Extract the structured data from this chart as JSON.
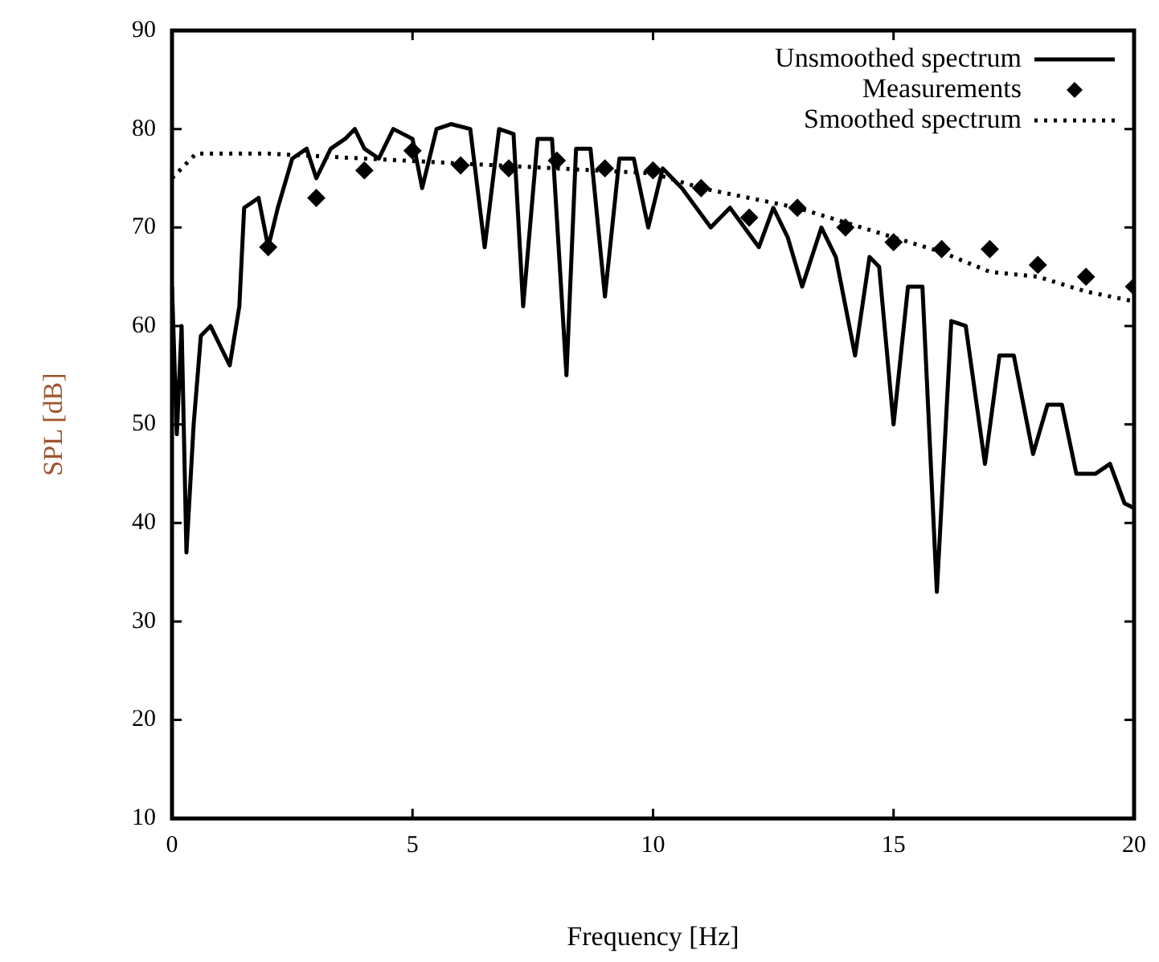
{
  "chart_data": {
    "type": "line",
    "xlabel": "Frequency [Hz]",
    "ylabel": "SPL [dB]",
    "xlim": [
      0,
      20
    ],
    "xticks": [
      0,
      5,
      10,
      15,
      20
    ],
    "ylim": [
      10,
      90
    ],
    "yticks": [
      10,
      20,
      30,
      40,
      50,
      60,
      70,
      80,
      90
    ],
    "grid": false,
    "legend": "top right",
    "series": [
      {
        "name": "Unsmoothed spectrum",
        "type": "line",
        "color": "#000000",
        "line_style": "solid",
        "marker": "none",
        "x": [
          0,
          0.1,
          0.2,
          0.3,
          0.45,
          0.6,
          0.8,
          1.0,
          1.2,
          1.4,
          1.5,
          1.8,
          2.0,
          2.2,
          2.5,
          2.8,
          3.0,
          3.3,
          3.6,
          3.8,
          4.0,
          4.3,
          4.6,
          5.0,
          5.2,
          5.5,
          5.8,
          6.2,
          6.5,
          6.8,
          7.1,
          7.3,
          7.6,
          7.9,
          8.2,
          8.4,
          8.7,
          9.0,
          9.3,
          9.6,
          9.9,
          10.2,
          10.6,
          10.9,
          11.2,
          11.6,
          11.9,
          12.2,
          12.5,
          12.8,
          13.1,
          13.5,
          13.8,
          14.2,
          14.5,
          14.7,
          15.0,
          15.3,
          15.6,
          15.9,
          16.2,
          16.5,
          16.9,
          17.2,
          17.5,
          17.9,
          18.2,
          18.5,
          18.8,
          19.2,
          19.5,
          19.8,
          20
        ],
        "values": [
          64,
          49,
          60,
          37,
          50,
          59,
          60,
          58,
          56,
          62,
          72,
          73,
          68,
          72,
          77,
          78,
          75,
          78,
          79,
          80,
          78,
          77,
          80,
          79,
          74,
          80,
          80.5,
          80,
          68,
          80,
          79.5,
          62,
          79,
          79,
          55,
          78,
          78,
          63,
          77,
          77,
          70,
          76,
          74,
          72,
          70,
          72,
          70,
          68,
          72,
          69,
          64,
          70,
          67,
          57,
          67,
          66,
          50,
          64,
          64,
          33,
          60.5,
          60,
          46,
          57,
          57,
          47,
          52,
          52,
          45,
          45,
          46,
          42,
          41.5
        ]
      },
      {
        "name": "Measurements",
        "type": "scatter",
        "color": "#000000",
        "marker": "diamond",
        "x": [
          2,
          3,
          4,
          5,
          6,
          7,
          8,
          9,
          10,
          11,
          12,
          13,
          14,
          15,
          16,
          17,
          18,
          19,
          20
        ],
        "values": [
          68,
          73,
          75.8,
          77.8,
          76.3,
          76,
          76.8,
          76,
          75.8,
          74,
          71,
          72,
          70,
          68.5,
          67.8,
          67.8,
          66.2,
          65,
          64
        ]
      },
      {
        "name": "Smoothed spectrum",
        "type": "line",
        "color": "#000000",
        "line_style": "dotted",
        "marker": "none",
        "x": [
          0,
          0.5,
          2,
          4,
          6,
          8,
          10,
          11,
          12,
          13,
          14,
          15,
          16,
          17,
          18,
          19,
          20
        ],
        "values": [
          75,
          77.5,
          77.5,
          77,
          76.5,
          76,
          75.5,
          74,
          73,
          72,
          70.5,
          69,
          67.5,
          65.5,
          65,
          63.5,
          62.5
        ]
      }
    ]
  }
}
